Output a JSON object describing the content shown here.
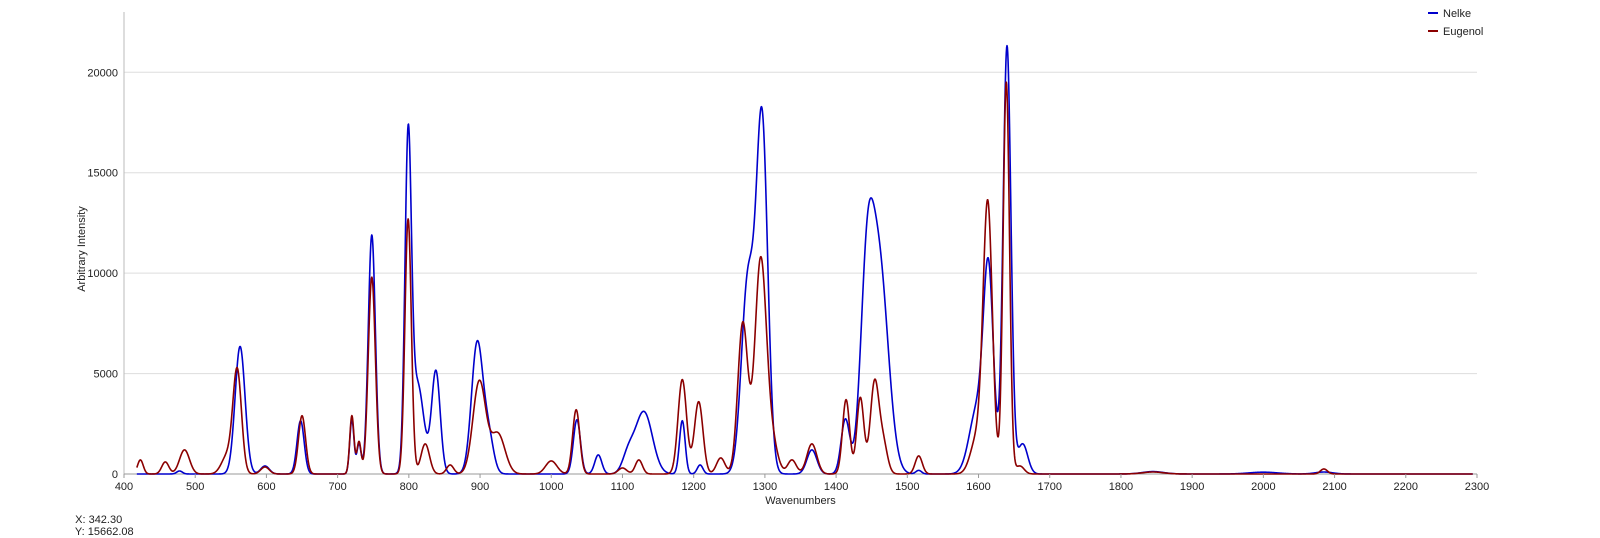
{
  "chart_data": {
    "type": "line",
    "title": "",
    "xlabel": "Wavenumbers",
    "ylabel": "Arbitrary Intensity",
    "xlim": [
      400,
      2300
    ],
    "ylim": [
      0,
      23000
    ],
    "x_ticks": [
      400,
      500,
      600,
      700,
      800,
      900,
      1000,
      1100,
      1200,
      1300,
      1400,
      1500,
      1600,
      1700,
      1800,
      1900,
      2000,
      2100,
      2200,
      2300
    ],
    "y_ticks": [
      0,
      5000,
      10000,
      15000,
      20000
    ],
    "grid": "horizontal",
    "legend_position": "top-right",
    "series": [
      {
        "name": "Nelke",
        "color": "#0000cc",
        "peaks": [
          {
            "x": 478,
            "y": 150,
            "w": 4
          },
          {
            "x": 563,
            "y": 6350,
            "w": 7
          },
          {
            "x": 598,
            "y": 400,
            "w": 6
          },
          {
            "x": 648,
            "y": 2650,
            "w": 5
          },
          {
            "x": 720,
            "y": 2700,
            "w": 3
          },
          {
            "x": 730,
            "y": 1500,
            "w": 3
          },
          {
            "x": 748,
            "y": 11900,
            "w": 5
          },
          {
            "x": 799,
            "y": 15800,
            "w": 4.5
          },
          {
            "x": 812,
            "y": 4500,
            "w": 9
          },
          {
            "x": 838,
            "y": 5100,
            "w": 6
          },
          {
            "x": 896,
            "y": 6500,
            "w": 8
          },
          {
            "x": 912,
            "y": 1800,
            "w": 7
          },
          {
            "x": 1036,
            "y": 2700,
            "w": 5
          },
          {
            "x": 1066,
            "y": 950,
            "w": 5
          },
          {
            "x": 1108,
            "y": 900,
            "w": 8
          },
          {
            "x": 1130,
            "y": 3100,
            "w": 12
          },
          {
            "x": 1184,
            "y": 2650,
            "w": 4
          },
          {
            "x": 1209,
            "y": 450,
            "w": 4
          },
          {
            "x": 1276,
            "y": 9500,
            "w": 9
          },
          {
            "x": 1296,
            "y": 17400,
            "w": 8
          },
          {
            "x": 1366,
            "y": 1200,
            "w": 7
          },
          {
            "x": 1413,
            "y": 2700,
            "w": 6
          },
          {
            "x": 1443,
            "y": 8000,
            "w": 9
          },
          {
            "x": 1460,
            "y": 10500,
            "w": 13
          },
          {
            "x": 1516,
            "y": 180,
            "w": 4
          },
          {
            "x": 1598,
            "y": 3200,
            "w": 11
          },
          {
            "x": 1614,
            "y": 9600,
            "w": 7
          },
          {
            "x": 1640,
            "y": 21300,
            "w": 5.5
          },
          {
            "x": 1662,
            "y": 1500,
            "w": 7
          },
          {
            "x": 1845,
            "y": 120,
            "w": 15
          },
          {
            "x": 2000,
            "y": 90,
            "w": 20
          },
          {
            "x": 2085,
            "y": 100,
            "w": 12
          }
        ]
      },
      {
        "name": "Eugenol",
        "color": "#8b0000",
        "peaks": [
          {
            "x": 423,
            "y": 700,
            "w": 4
          },
          {
            "x": 458,
            "y": 600,
            "w": 5
          },
          {
            "x": 485,
            "y": 1200,
            "w": 7
          },
          {
            "x": 545,
            "y": 900,
            "w": 8
          },
          {
            "x": 559,
            "y": 5100,
            "w": 6
          },
          {
            "x": 598,
            "y": 350,
            "w": 6
          },
          {
            "x": 650,
            "y": 2900,
            "w": 5
          },
          {
            "x": 720,
            "y": 2900,
            "w": 3
          },
          {
            "x": 730,
            "y": 1600,
            "w": 3
          },
          {
            "x": 748,
            "y": 9800,
            "w": 5
          },
          {
            "x": 799,
            "y": 12700,
            "w": 4.5
          },
          {
            "x": 823,
            "y": 1500,
            "w": 6
          },
          {
            "x": 858,
            "y": 450,
            "w": 5
          },
          {
            "x": 899,
            "y": 4600,
            "w": 9
          },
          {
            "x": 925,
            "y": 2000,
            "w": 10
          },
          {
            "x": 1000,
            "y": 650,
            "w": 8
          },
          {
            "x": 1035,
            "y": 3200,
            "w": 5
          },
          {
            "x": 1100,
            "y": 300,
            "w": 6
          },
          {
            "x": 1123,
            "y": 700,
            "w": 5
          },
          {
            "x": 1184,
            "y": 4700,
            "w": 6
          },
          {
            "x": 1207,
            "y": 3600,
            "w": 6
          },
          {
            "x": 1238,
            "y": 800,
            "w": 6
          },
          {
            "x": 1269,
            "y": 7500,
            "w": 7
          },
          {
            "x": 1294,
            "y": 10600,
            "w": 8
          },
          {
            "x": 1310,
            "y": 1500,
            "w": 8
          },
          {
            "x": 1338,
            "y": 700,
            "w": 6
          },
          {
            "x": 1366,
            "y": 1500,
            "w": 7
          },
          {
            "x": 1414,
            "y": 3700,
            "w": 5
          },
          {
            "x": 1434,
            "y": 3800,
            "w": 5
          },
          {
            "x": 1454,
            "y": 4500,
            "w": 6
          },
          {
            "x": 1466,
            "y": 1500,
            "w": 6
          },
          {
            "x": 1516,
            "y": 900,
            "w": 5
          },
          {
            "x": 1598,
            "y": 1800,
            "w": 9
          },
          {
            "x": 1613,
            "y": 13200,
            "w": 6.5
          },
          {
            "x": 1639,
            "y": 19500,
            "w": 4.5
          },
          {
            "x": 1658,
            "y": 400,
            "w": 6
          },
          {
            "x": 1845,
            "y": 100,
            "w": 15
          },
          {
            "x": 2085,
            "y": 250,
            "w": 5
          }
        ]
      }
    ]
  },
  "cursor_readout": {
    "x_text": "X: 342.30",
    "y_text": "Y: 15662.08"
  }
}
